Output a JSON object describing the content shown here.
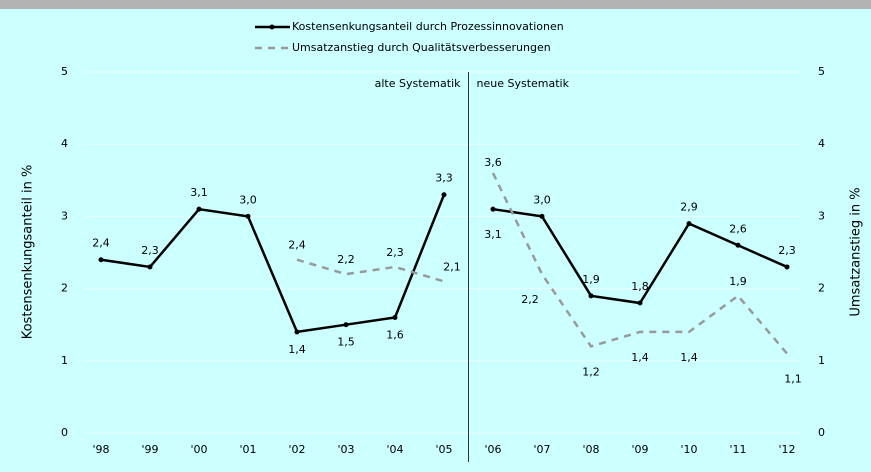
{
  "chart_data": {
    "type": "line",
    "categories": [
      "'98",
      "'99",
      "'00",
      "'01",
      "'02",
      "'03",
      "'04",
      "'05",
      "'06",
      "'07",
      "'08",
      "'09",
      "'10",
      "'11",
      "'12"
    ],
    "series": [
      {
        "name": "Kostensenkungsanteil durch Prozessinnovationen",
        "color": "#000000",
        "axis": "y",
        "values": [
          2.4,
          2.3,
          3.1,
          3.0,
          1.4,
          1.5,
          1.6,
          3.3,
          3.1,
          3.0,
          1.9,
          1.8,
          2.9,
          2.6,
          2.3
        ],
        "value_labels": [
          "2,4",
          "2,3",
          "3,1",
          "3,0",
          "1,4",
          "1,5",
          "1,6",
          "3,3",
          "3,1",
          "3,0",
          "1,9",
          "1,8",
          "2,9",
          "2,6",
          "2,3"
        ]
      },
      {
        "name": "Umsatzanstieg durch Qualitätsverbesserungen",
        "color": "#999999",
        "axis": "y2",
        "values": [
          null,
          null,
          null,
          null,
          2.4,
          2.2,
          2.3,
          2.1,
          3.6,
          2.2,
          1.2,
          1.4,
          1.4,
          1.9,
          1.1
        ],
        "value_labels": [
          null,
          null,
          null,
          null,
          "2,4",
          "2,2",
          "2,3",
          "2,1",
          "3,6",
          "2,2",
          "1,2",
          "1,4",
          "1,4",
          "1,9",
          "1,1"
        ]
      }
    ],
    "ylabel": "Kostensenkungsanteil in %",
    "y2label": "Umsatzanstieg in %",
    "ylim": [
      0,
      5
    ],
    "yticks": [
      0,
      1,
      2,
      3,
      4,
      5
    ],
    "y2lim": [
      0,
      5
    ],
    "y2ticks": [
      0,
      1,
      2,
      3,
      4,
      5
    ],
    "grid": true,
    "break_between": [
      "'05",
      "'06"
    ],
    "annotations": [
      "alte Systematik",
      "neue Systematik"
    ]
  }
}
